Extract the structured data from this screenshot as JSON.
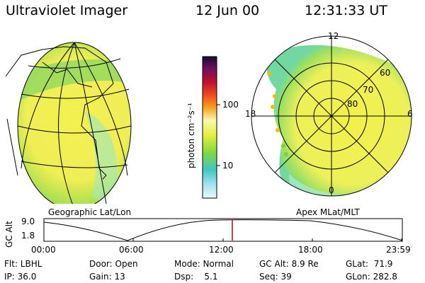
{
  "header": {
    "title": "Ultraviolet Imager",
    "date": "12 Jun 00",
    "time": "12:31:33 UT"
  },
  "panels": {
    "geographic_label": "Geographic Lat/Lon",
    "apex_label": "Apex MLat/MLT"
  },
  "colorbar": {
    "unit_label": "photon cm⁻²s⁻¹",
    "tick_100": "100",
    "tick_10": "10"
  },
  "polar": {
    "mlt_top": "12",
    "mlt_left": "18",
    "mlt_right": "6",
    "mlt_bottom": "0",
    "lat_60": "60",
    "lat_70": "70",
    "lat_80": "80"
  },
  "altitude_plot": {
    "ylabel": "GC Alt",
    "y_tick": "9.0",
    "y_tick_low": "1.8",
    "x_ticks": [
      "00:00",
      "06:00",
      "12:00",
      "18:00",
      "23:59"
    ]
  },
  "footer": {
    "filter": "Flt: LBHL",
    "ip": "IP: 36.0",
    "door": "Door: Open",
    "gain": "Gain: 13",
    "mode": "Mode: Normal",
    "dsp": "Dsp:    5.1",
    "gc_alt": "GC Alt: 8.9 Re",
    "seq": "Seq: 39",
    "glat": "GLat:  71.9",
    "glon": "GLon: 282.8"
  },
  "colors": {
    "auroral_yellow": "#f4f04a",
    "auroral_green": "#7ed848",
    "cursor": "#d00000"
  }
}
